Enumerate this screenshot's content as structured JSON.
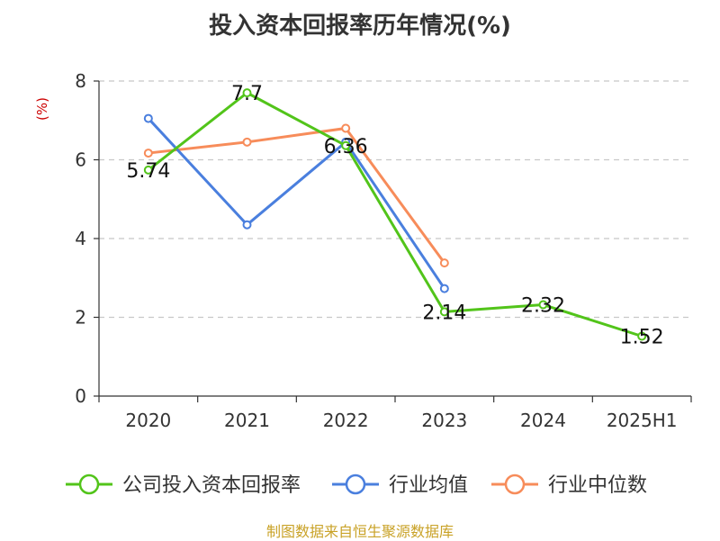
{
  "chart_data": {
    "type": "line",
    "title": "投入资本回报率历年情况(%)",
    "ylabel": "(%)",
    "categories": [
      "2020",
      "2021",
      "2022",
      "2023",
      "2024",
      "2025H1"
    ],
    "ylim": [
      0,
      8
    ],
    "yticks": [
      0,
      2,
      4,
      6,
      8
    ],
    "grid": true,
    "legend_position": "bottom",
    "series": [
      {
        "name": "公司投入资本回报率",
        "color": "#52c41a",
        "values": [
          5.74,
          7.7,
          6.36,
          2.14,
          2.32,
          1.52
        ],
        "labels": [
          "5.74",
          "7.7",
          "6.36",
          "2.14",
          "2.32",
          "1.52"
        ]
      },
      {
        "name": "行业均值",
        "color": "#4a7fde",
        "values": [
          7.05,
          4.35,
          6.45,
          2.73,
          null,
          null
        ]
      },
      {
        "name": "行业中位数",
        "color": "#f78c5a",
        "values": [
          6.17,
          6.45,
          6.8,
          3.38,
          null,
          null
        ]
      }
    ]
  },
  "source": "制图数据来自恒生聚源数据库"
}
